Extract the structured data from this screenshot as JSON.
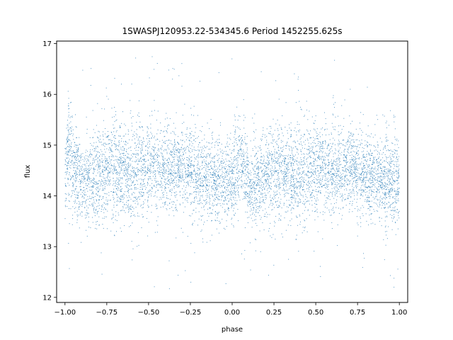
{
  "chart_data": {
    "type": "scatter",
    "title": "1SWASPJ120953.22-534345.6 Period 1452255.625s",
    "xlabel": "phase",
    "ylabel": "flux",
    "xlim": [
      -1.05,
      1.05
    ],
    "ylim": [
      11.9,
      17.05
    ],
    "x_ticks": [
      -1.0,
      -0.75,
      -0.5,
      -0.25,
      0.0,
      0.25,
      0.5,
      0.75,
      1.0
    ],
    "x_tick_labels": [
      "−1.00",
      "−0.75",
      "−0.50",
      "−0.25",
      "0.00",
      "0.25",
      "0.50",
      "0.75",
      "1.00"
    ],
    "y_ticks": [
      12,
      13,
      14,
      15,
      16,
      17
    ],
    "y_tick_labels": [
      "12",
      "13",
      "14",
      "15",
      "16",
      "17"
    ],
    "grid": false,
    "series": [
      {
        "color": "#1f77b4",
        "x_range": [
          -1.0,
          1.0
        ],
        "typical_flux_range": [
          13.6,
          15.4
        ],
        "median_flux": 14.45,
        "outlier_range": [
          12.1,
          16.8
        ],
        "profile": [
          {
            "x": -1.0,
            "center": 14.3,
            "spread": 0.55
          },
          {
            "x": -0.98,
            "center": 14.9,
            "spread": 0.5
          },
          {
            "x": -0.95,
            "center": 14.6,
            "spread": 0.45
          },
          {
            "x": -0.9,
            "center": 14.2,
            "spread": 0.4
          },
          {
            "x": -0.8,
            "center": 14.4,
            "spread": 0.45
          },
          {
            "x": -0.7,
            "center": 14.6,
            "spread": 0.45
          },
          {
            "x": -0.6,
            "center": 14.4,
            "spread": 0.5
          },
          {
            "x": -0.5,
            "center": 14.6,
            "spread": 0.45
          },
          {
            "x": -0.4,
            "center": 14.5,
            "spread": 0.4
          },
          {
            "x": -0.3,
            "center": 14.6,
            "spread": 0.4
          },
          {
            "x": -0.2,
            "center": 14.4,
            "spread": 0.4
          },
          {
            "x": -0.1,
            "center": 14.3,
            "spread": 0.4
          },
          {
            "x": 0.0,
            "center": 14.3,
            "spread": 0.45
          },
          {
            "x": 0.05,
            "center": 14.8,
            "spread": 0.45
          },
          {
            "x": 0.1,
            "center": 14.2,
            "spread": 0.4
          },
          {
            "x": 0.2,
            "center": 14.4,
            "spread": 0.45
          },
          {
            "x": 0.3,
            "center": 14.5,
            "spread": 0.45
          },
          {
            "x": 0.4,
            "center": 14.4,
            "spread": 0.5
          },
          {
            "x": 0.5,
            "center": 14.6,
            "spread": 0.45
          },
          {
            "x": 0.6,
            "center": 14.5,
            "spread": 0.4
          },
          {
            "x": 0.7,
            "center": 14.6,
            "spread": 0.4
          },
          {
            "x": 0.8,
            "center": 14.4,
            "spread": 0.4
          },
          {
            "x": 0.9,
            "center": 14.3,
            "spread": 0.4
          },
          {
            "x": 1.0,
            "center": 14.3,
            "spread": 0.45
          }
        ]
      }
    ]
  }
}
